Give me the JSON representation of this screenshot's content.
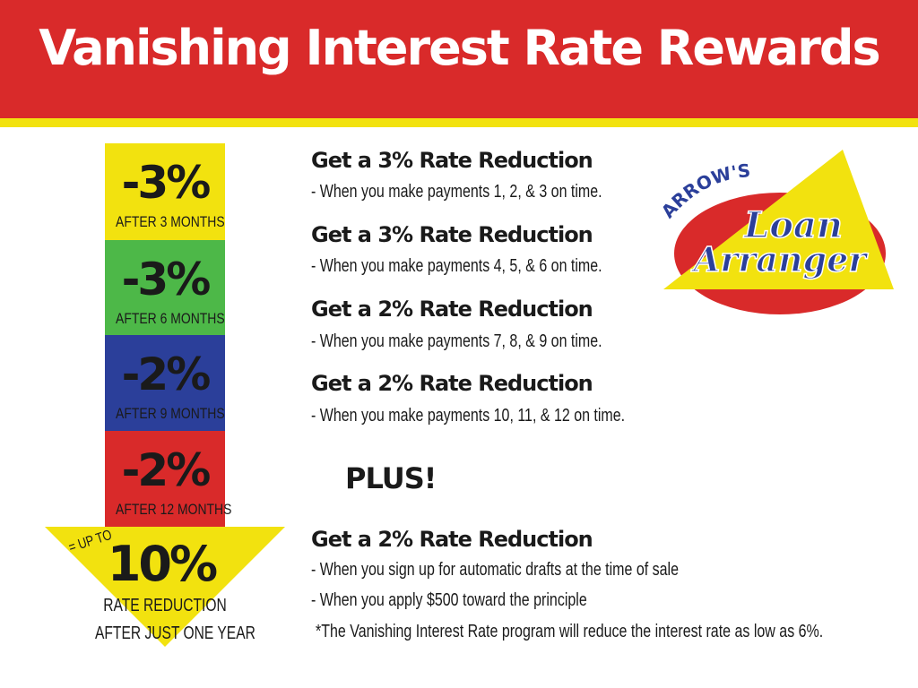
{
  "title": "Vanishing Interest Rate Rewards",
  "colors": {
    "red": "#d92a2a",
    "yellow": "#f2e20f",
    "green": "#4db848",
    "blue": "#2b3f9a",
    "text": "#1a1a1a"
  },
  "steps": [
    {
      "pct": "-3%",
      "label": "AFTER 3 MONTHS",
      "color": "#f2e20f"
    },
    {
      "pct": "-3%",
      "label": "AFTER 6 MONTHS",
      "color": "#4db848"
    },
    {
      "pct": "-2%",
      "label": "AFTER 9 MONTHS",
      "color": "#2b3f9a"
    },
    {
      "pct": "-2%",
      "label": "AFTER 12 MONTHS",
      "color": "#d92a2a"
    }
  ],
  "total": {
    "prefix": "= UP TO",
    "pct": "10%",
    "line1": "RATE REDUCTION",
    "line2": "AFTER JUST ONE YEAR"
  },
  "rewards": [
    {
      "heading": "Get a 3% Rate Reduction",
      "detail": "- When you make payments 1, 2, & 3 on time."
    },
    {
      "heading": "Get a 3% Rate Reduction",
      "detail": "- When you make payments 4, 5, & 6 on time."
    },
    {
      "heading": "Get a 2% Rate Reduction",
      "detail": "- When you make payments 7, 8, & 9 on time."
    },
    {
      "heading": "Get a 2% Rate Reduction",
      "detail": "- When you make payments 10, 11, & 12 on time."
    }
  ],
  "plus": "PLUS!",
  "bonus": {
    "heading": "Get a 2% Rate Reduction",
    "detail1": "- When you sign up for automatic drafts at the time of sale",
    "detail2": "- When you apply $500 toward the principle"
  },
  "footnote": "*The Vanishing Interest Rate program will reduce the interest rate as low as 6%.",
  "logo": {
    "top": "ARROW'S",
    "line1": "Loan",
    "line2": "Arranger"
  }
}
